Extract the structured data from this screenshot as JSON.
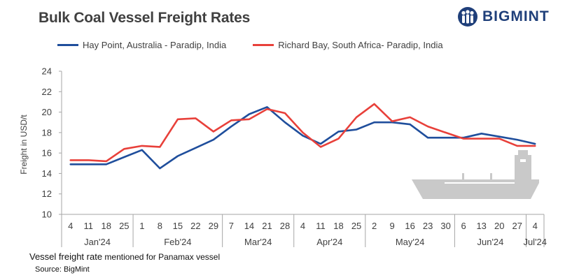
{
  "title": "Bulk Coal Vessel Freight Rates",
  "logo": {
    "text": "BIGMINT",
    "icon": "bigmint-people-icon",
    "color": "#1f3f7a"
  },
  "note": {
    "main": "Vessel freight rate",
    "rest": " mentioned for Panamax  vessel"
  },
  "source": "Source:  BigMint",
  "chart_data": {
    "type": "line",
    "title": "Bulk Coal Vessel Freight Rates",
    "ylabel": "Freight  in USD/t",
    "xlabel": "",
    "ylim": [
      10,
      24
    ],
    "yticks": [
      10,
      12,
      14,
      16,
      18,
      20,
      22,
      24
    ],
    "grid": false,
    "legend_position": "top",
    "x": [
      "4",
      "11",
      "18",
      "25",
      "1",
      "8",
      "15",
      "22",
      "29",
      "7",
      "14",
      "21",
      "28",
      "4",
      "11",
      "18",
      "25",
      "2",
      "9",
      "16",
      "23",
      "30",
      "6",
      "13",
      "20",
      "27",
      "4"
    ],
    "months": [
      {
        "label": "Jan'24",
        "count": 4
      },
      {
        "label": "Feb'24",
        "count": 5
      },
      {
        "label": "Mar'24",
        "count": 4
      },
      {
        "label": "Apr'24",
        "count": 4
      },
      {
        "label": "May'24",
        "count": 5
      },
      {
        "label": "Jun'24",
        "count": 4
      },
      {
        "label": "Jul'24",
        "count": 1
      }
    ],
    "series": [
      {
        "name": "Hay Point, Australia - Paradip, India",
        "color": "#1f4e9c",
        "values": [
          14.9,
          14.9,
          14.9,
          15.6,
          16.3,
          14.5,
          15.7,
          16.5,
          17.3,
          18.6,
          19.8,
          20.5,
          19.0,
          17.7,
          16.9,
          18.1,
          18.3,
          19.0,
          19.0,
          18.8,
          17.5,
          17.5,
          17.5,
          17.9,
          17.6,
          17.3,
          16.9
        ]
      },
      {
        "name": "Richard Bay, South Africa- Paradip, India",
        "color": "#e8403a",
        "values": [
          15.3,
          15.3,
          15.2,
          16.4,
          16.7,
          16.6,
          19.3,
          19.4,
          18.1,
          19.2,
          19.3,
          20.3,
          19.9,
          18.0,
          16.6,
          17.4,
          19.5,
          20.8,
          19.1,
          19.5,
          18.6,
          18.0,
          17.4,
          17.4,
          17.4,
          16.7,
          16.7
        ]
      }
    ]
  }
}
